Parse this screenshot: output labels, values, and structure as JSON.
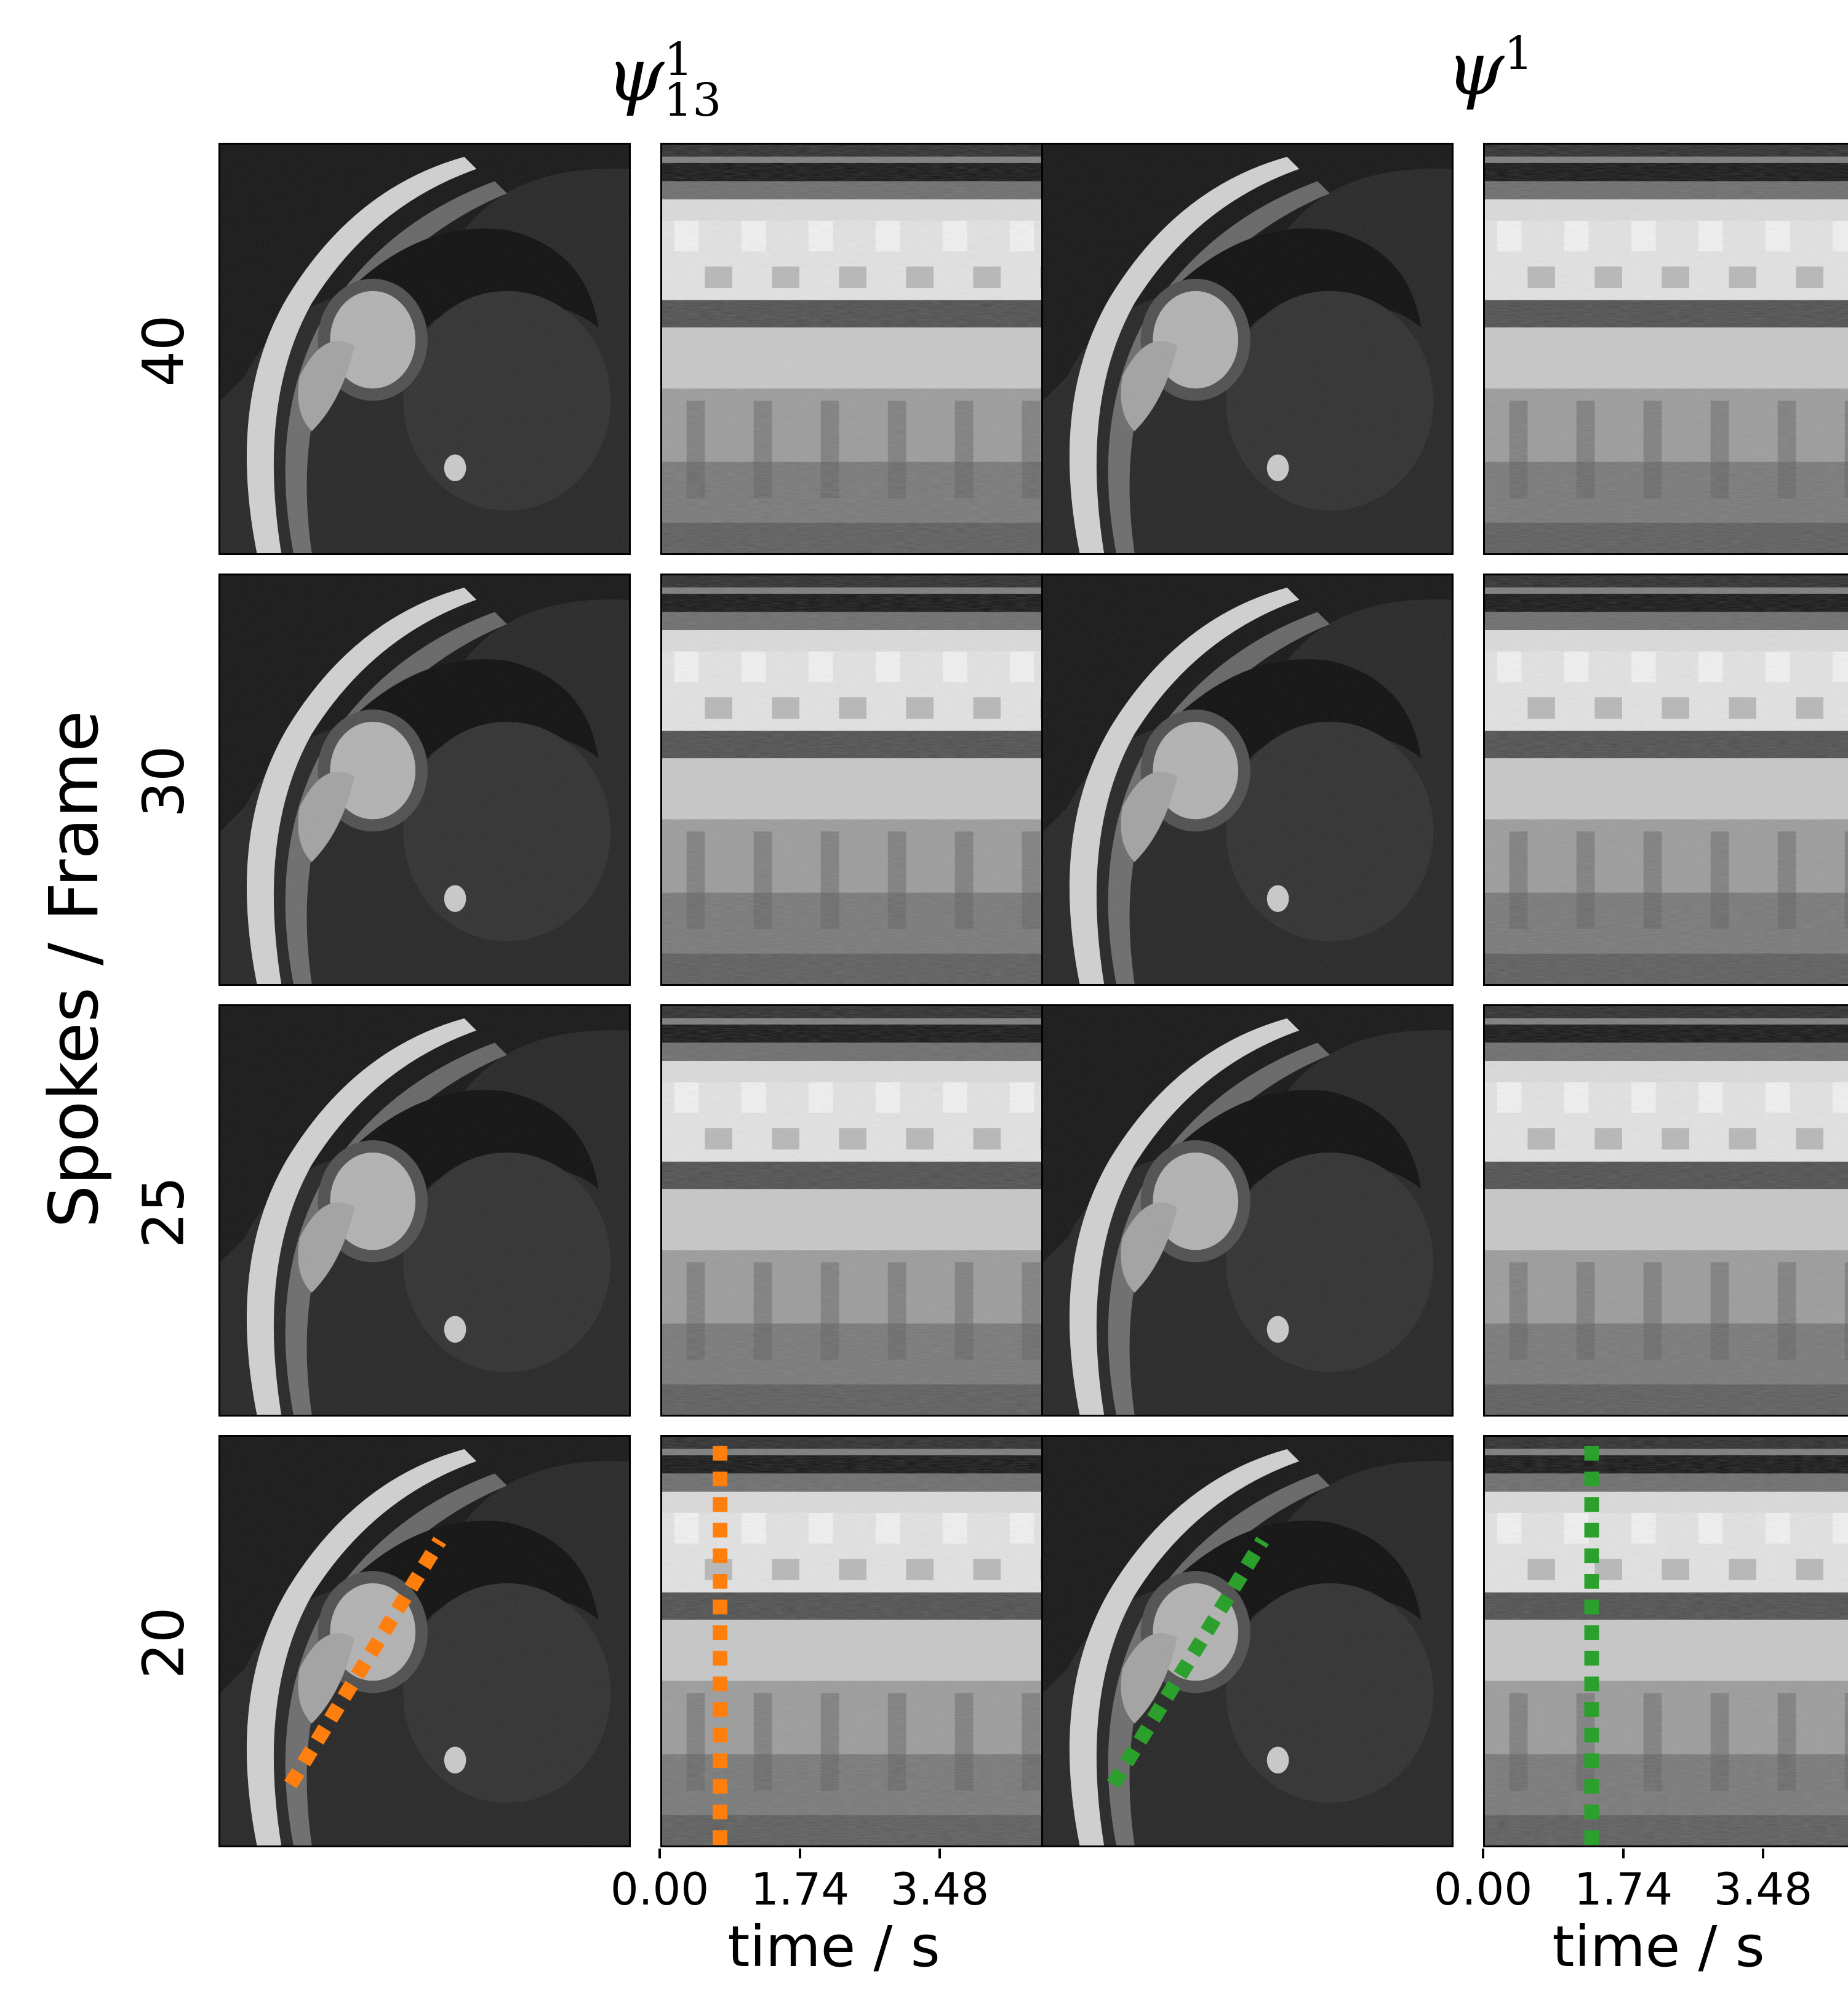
{
  "column_titles": [
    {
      "base": "ψ",
      "sup": "1",
      "sub": "13"
    },
    {
      "base": "ψ",
      "sup": "1",
      "sub": ""
    }
  ],
  "ylabel": "Spokes / Frame",
  "row_labels": [
    "40",
    "30",
    "25",
    "20"
  ],
  "xaxis": {
    "ticks": [
      "0.00",
      "1.74",
      "3.48"
    ],
    "label": "time / s"
  },
  "colors": {
    "left_dotted_line": "#ff7f0e",
    "right_dotted_line": "#2ca02c"
  }
}
